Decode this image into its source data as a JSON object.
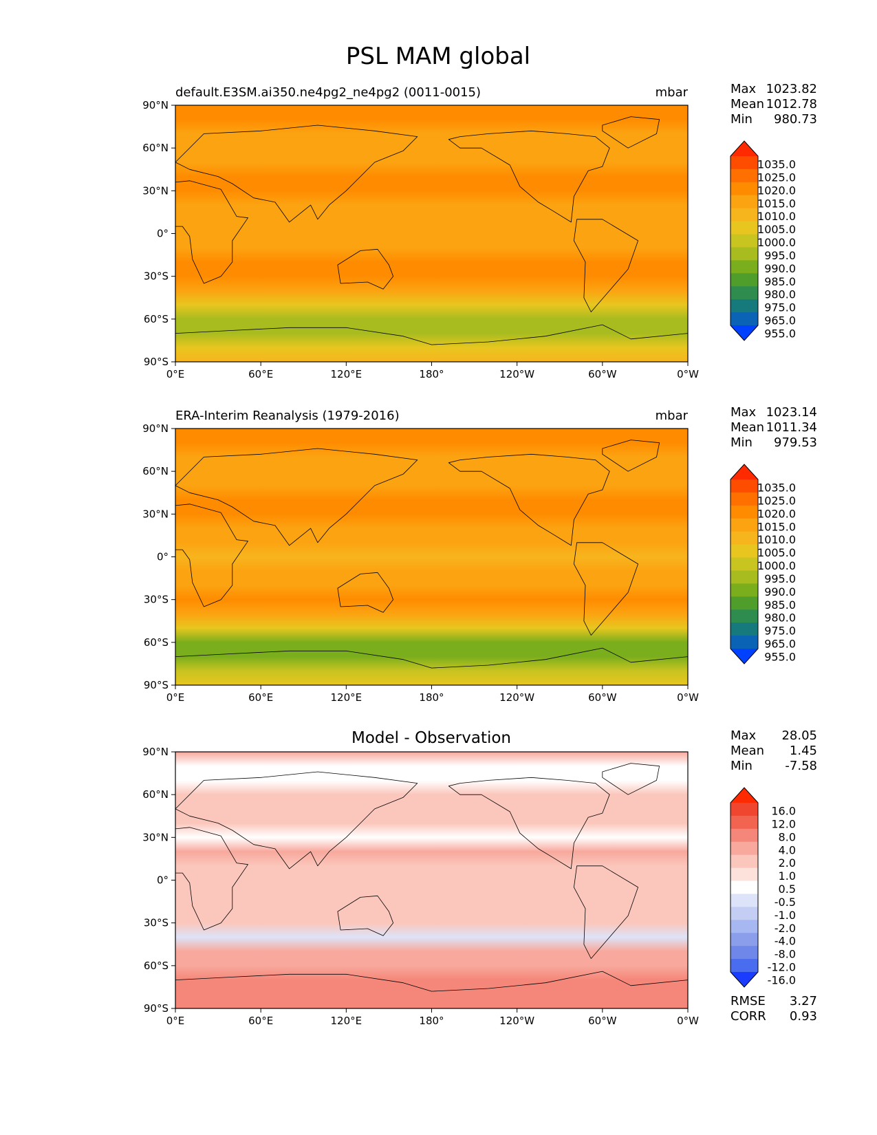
{
  "figure_title": "PSL MAM global",
  "axes": {
    "lat_ticks": [
      "90°N",
      "60°N",
      "30°N",
      "0°",
      "30°S",
      "60°S",
      "90°S"
    ],
    "lon_ticks": [
      "0°E",
      "60°E",
      "120°E",
      "180°",
      "120°W",
      "60°W",
      "0°W"
    ]
  },
  "chart_data": [
    {
      "type": "heatmap",
      "title": "default.E3SM.ai350.ne4pg2_ne4pg2 (0011-0015)",
      "units": "mbar",
      "variable": "PSL",
      "season": "MAM",
      "stats": [
        {
          "label": "Max",
          "value": "1023.82"
        },
        {
          "label": "Mean",
          "value": "1012.78"
        },
        {
          "label": "Min",
          "value": "980.73"
        }
      ],
      "colorbar_levels": [
        "1035.0",
        "1025.0",
        "1020.0",
        "1015.0",
        "1010.0",
        "1005.0",
        "1000.0",
        "995.0",
        "990.0",
        "985.0",
        "980.0",
        "975.0",
        "965.0",
        "955.0"
      ],
      "colorbar_colors": [
        "#ff2a00",
        "#ff4d00",
        "#ff7000",
        "#ff8c00",
        "#fca311",
        "#f7b51d",
        "#e8c61f",
        "#c8c420",
        "#a8bc1f",
        "#7aae1c",
        "#4f9d2a",
        "#2f8c4f",
        "#167a7c",
        "#0a63b5",
        "#0040ff"
      ],
      "zonal_lat": [
        90,
        80,
        70,
        60,
        50,
        40,
        30,
        20,
        10,
        0,
        -10,
        -20,
        -30,
        -40,
        -50,
        -60,
        -70,
        -80,
        -90
      ],
      "zonal_mean_psl": [
        1018,
        1016,
        1014,
        1012,
        1013,
        1016,
        1016,
        1013,
        1011,
        1010,
        1012,
        1015,
        1017,
        1013,
        1002,
        990,
        992,
        1002,
        1008
      ]
    },
    {
      "type": "heatmap",
      "title": "ERA-Interim Reanalysis (1979-2016)",
      "units": "mbar",
      "variable": "PSL",
      "season": "MAM",
      "stats": [
        {
          "label": "Max",
          "value": "1023.14"
        },
        {
          "label": "Mean",
          "value": "1011.34"
        },
        {
          "label": "Min",
          "value": "979.53"
        }
      ],
      "colorbar_levels": [
        "1035.0",
        "1025.0",
        "1020.0",
        "1015.0",
        "1010.0",
        "1005.0",
        "1000.0",
        "995.0",
        "990.0",
        "985.0",
        "980.0",
        "975.0",
        "965.0",
        "955.0"
      ],
      "colorbar_colors": [
        "#ff2a00",
        "#ff4d00",
        "#ff7000",
        "#ff8c00",
        "#fca311",
        "#f7b51d",
        "#e8c61f",
        "#c8c420",
        "#a8bc1f",
        "#7aae1c",
        "#4f9d2a",
        "#2f8c4f",
        "#167a7c",
        "#0a63b5",
        "#0040ff"
      ],
      "zonal_lat": [
        90,
        80,
        70,
        60,
        50,
        40,
        30,
        20,
        10,
        0,
        -10,
        -20,
        -30,
        -40,
        -50,
        -60,
        -70,
        -80,
        -90
      ],
      "zonal_mean_psl": [
        1015,
        1016,
        1014,
        1011,
        1012,
        1015,
        1016,
        1013,
        1010,
        1009,
        1011,
        1014,
        1016,
        1012,
        1000,
        987,
        988,
        996,
        1003
      ]
    },
    {
      "type": "heatmap",
      "title": "Model - Observation",
      "units": "mbar",
      "variable": "PSL difference",
      "stats": [
        {
          "label": "Max",
          "value": "28.05"
        },
        {
          "label": "Mean",
          "value": "1.45"
        },
        {
          "label": "Min",
          "value": "-7.58"
        }
      ],
      "extra_stats": [
        {
          "label": "RMSE",
          "value": "3.27"
        },
        {
          "label": "CORR",
          "value": "0.93"
        }
      ],
      "colorbar_levels": [
        "16.0",
        "12.0",
        "8.0",
        "4.0",
        "2.0",
        "1.0",
        "0.5",
        "-0.5",
        "-1.0",
        "-2.0",
        "-4.0",
        "-8.0",
        "-12.0",
        "-16.0"
      ],
      "colorbar_colors": [
        "#ff2a00",
        "#f0462f",
        "#f26450",
        "#f5877a",
        "#f8a89c",
        "#fbc6bc",
        "#fde2dc",
        "#ffffff",
        "#dde3f8",
        "#c4cef5",
        "#a7b7f1",
        "#8a9eec",
        "#6f87e8",
        "#4a6cef",
        "#1a3cff"
      ],
      "zonal_lat": [
        90,
        80,
        70,
        60,
        50,
        40,
        30,
        20,
        10,
        0,
        -10,
        -20,
        -30,
        -40,
        -50,
        -60,
        -70,
        -80,
        -90
      ],
      "zonal_mean_diff": [
        3,
        0,
        0,
        1,
        1,
        1,
        0,
        2,
        1,
        1,
        1,
        1,
        1,
        -1,
        2,
        3,
        4,
        6,
        5
      ]
    }
  ]
}
